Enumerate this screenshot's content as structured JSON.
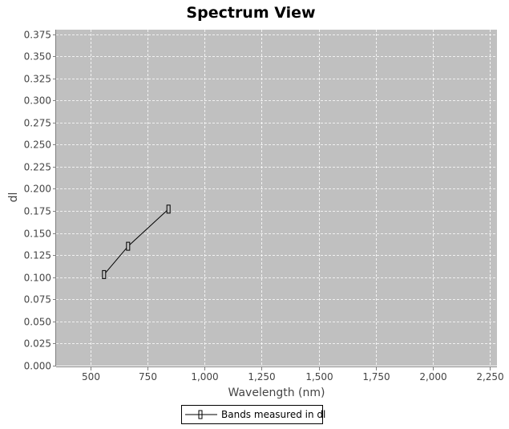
{
  "chart_data": {
    "type": "line",
    "title": "Spectrum View",
    "xlabel": "Wavelength (nm)",
    "ylabel": "dl",
    "xlim": [
      350,
      2280
    ],
    "ylim": [
      0,
      0.38
    ],
    "x_ticks": [
      500,
      750,
      1000,
      1250,
      1500,
      1750,
      2000,
      2250
    ],
    "x_tick_labels": [
      "500",
      "750",
      "1,000",
      "1,250",
      "1,500",
      "1,750",
      "2,000",
      "2,250"
    ],
    "y_ticks": [
      0,
      0.025,
      0.05,
      0.075,
      0.1,
      0.125,
      0.15,
      0.175,
      0.2,
      0.225,
      0.25,
      0.275,
      0.3,
      0.325,
      0.35,
      0.375
    ],
    "y_tick_labels": [
      "0.000",
      "0.025",
      "0.050",
      "0.075",
      "0.100",
      "0.125",
      "0.150",
      "0.175",
      "0.200",
      "0.225",
      "0.250",
      "0.275",
      "0.300",
      "0.325",
      "0.350",
      "0.375"
    ],
    "grid": true,
    "legend_position": "bottom-center",
    "colors": {
      "plot_background": "#c0c0c0",
      "gridline": "#ffffff",
      "series_line": "#000000",
      "marker": "#000000"
    },
    "series": [
      {
        "name": "Bands measured in dl",
        "marker": "rectangle",
        "points": [
          {
            "x": 560,
            "y": 0.103
          },
          {
            "x": 665,
            "y": 0.135
          },
          {
            "x": 842,
            "y": 0.177
          }
        ]
      }
    ]
  }
}
